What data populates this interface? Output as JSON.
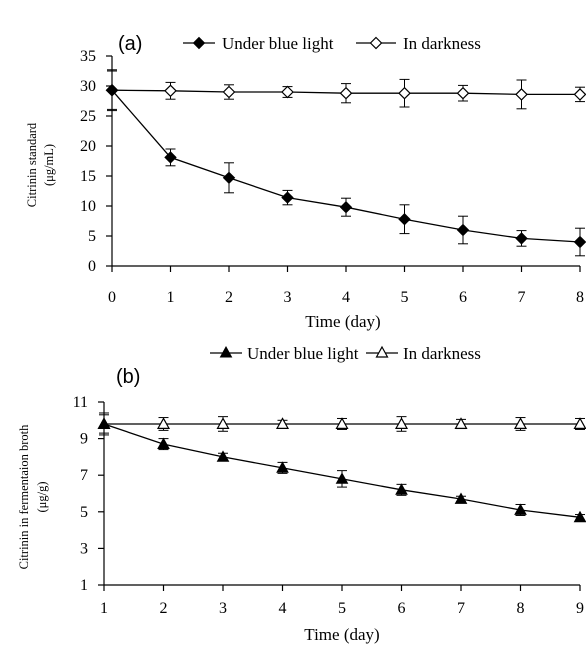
{
  "chart_data": [
    {
      "type": "line",
      "panel_label": "(a)",
      "xlabel": "Time (day)",
      "ylabel_line1": "Citrinin standard",
      "ylabel_line2": "(μg/mL)",
      "x": [
        0,
        1,
        2,
        3,
        4,
        5,
        6,
        7,
        8
      ],
      "x_tick_labels": [
        "0",
        "1",
        "2",
        "3",
        "4",
        "5",
        "6",
        "7",
        "8"
      ],
      "y_tick_labels": [
        "0",
        "5",
        "10",
        "15",
        "20",
        "25",
        "30",
        "35"
      ],
      "xlim": [
        0,
        8
      ],
      "ylim": [
        0,
        35
      ],
      "grid": false,
      "legend_position": "top",
      "series": [
        {
          "name": "Under blue light",
          "marker": "filled-diamond",
          "color": "#000000",
          "values": [
            29.3,
            18.1,
            14.7,
            11.4,
            9.8,
            7.8,
            6.0,
            4.6,
            4.0
          ],
          "errors": [
            3.2,
            1.4,
            2.5,
            1.2,
            1.5,
            2.4,
            2.3,
            1.3,
            2.3
          ]
        },
        {
          "name": "In darkness",
          "marker": "open-diamond",
          "color": "#000000",
          "values": [
            29.3,
            29.2,
            29.0,
            29.0,
            28.8,
            28.8,
            28.8,
            28.6,
            28.6
          ],
          "errors": [
            3.4,
            1.4,
            1.2,
            0.9,
            1.6,
            2.3,
            1.3,
            2.4,
            1.2
          ]
        }
      ]
    },
    {
      "type": "line",
      "panel_label": "(b)",
      "xlabel": "Time (day)",
      "ylabel_line1": "Citrinin in fermentaion broth",
      "ylabel_line2": "(μg/g)",
      "x": [
        1,
        2,
        3,
        4,
        5,
        6,
        7,
        8,
        9
      ],
      "x_tick_labels": [
        "1",
        "2",
        "3",
        "4",
        "5",
        "6",
        "7",
        "8",
        "9"
      ],
      "y_tick_labels": [
        "1",
        "3",
        "5",
        "7",
        "9",
        "11"
      ],
      "xlim": [
        1,
        9
      ],
      "ylim": [
        1,
        11
      ],
      "grid": false,
      "legend_position": "top",
      "series": [
        {
          "name": "Under blue light",
          "marker": "filled-triangle",
          "color": "#000000",
          "values": [
            9.8,
            8.7,
            8.0,
            7.4,
            6.8,
            6.2,
            5.7,
            5.1,
            4.7
          ],
          "errors": [
            0.6,
            0.3,
            0.2,
            0.3,
            0.45,
            0.3,
            0.15,
            0.3,
            0.15
          ]
        },
        {
          "name": "In darkness",
          "marker": "open-triangle",
          "color": "#000000",
          "values": [
            9.8,
            9.8,
            9.8,
            9.8,
            9.8,
            9.8,
            9.8,
            9.8,
            9.8
          ],
          "errors": [
            0.5,
            0.35,
            0.4,
            0.2,
            0.3,
            0.4,
            0.25,
            0.35,
            0.3
          ]
        }
      ]
    }
  ]
}
